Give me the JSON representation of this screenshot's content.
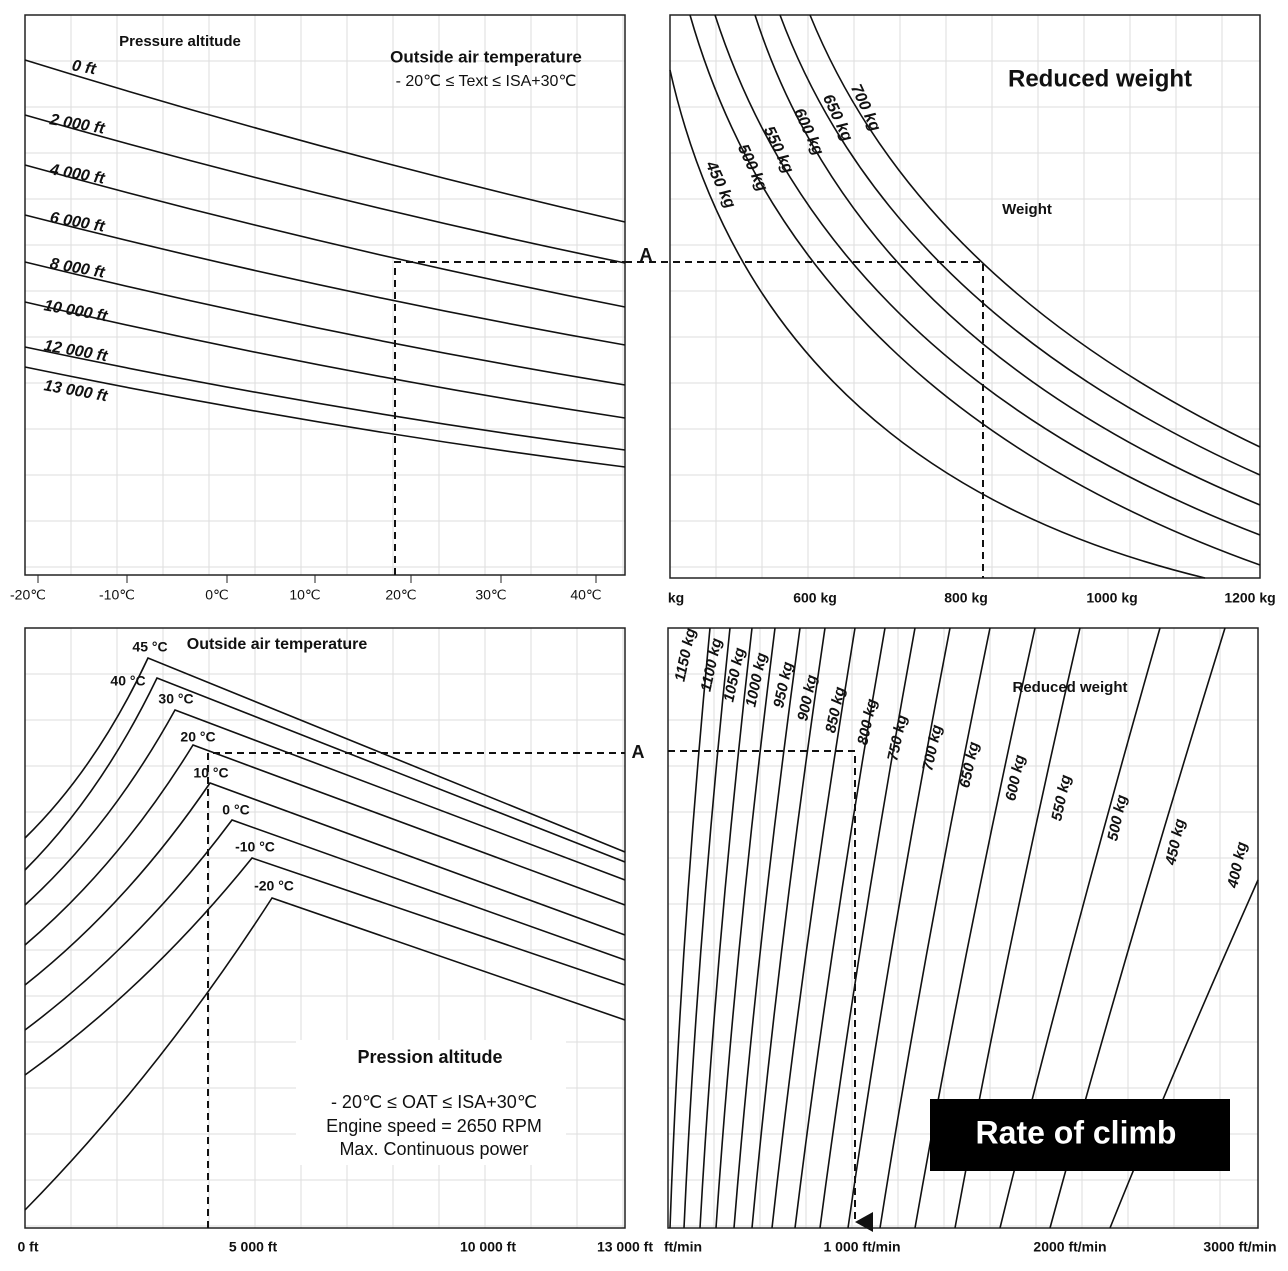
{
  "top_left": {
    "title": "Pressure altitude",
    "note_title": "Outside air temperature",
    "note": "- 20℃  ≤ Text ≤ ISA+30℃",
    "curve_labels": [
      "0 ft",
      "2 000 ft",
      "4 000 ft",
      "6 000 ft",
      "8 000 ft",
      "10 000 ft",
      "12 000 ft",
      "13 000 ft"
    ],
    "x_labels": [
      "-20℃",
      "-10℃",
      "0℃",
      "10℃",
      "20℃",
      "30℃",
      "40℃"
    ],
    "marker": "A"
  },
  "top_right": {
    "title": "Reduced weight",
    "subtitle": "Weight",
    "curve_labels": [
      "450 kg",
      "500 kg",
      "550 kg",
      "600 kg",
      "650 kg",
      "700 kg"
    ],
    "x_labels": [
      "kg",
      "600 kg",
      "800 kg",
      "1000 kg",
      "1200 kg"
    ]
  },
  "bottom_left": {
    "title": "Outside air temperature",
    "curve_labels": [
      "45 °C",
      "40 °C",
      "30 °C",
      "20 °C",
      "10 °C",
      "0 °C",
      "-10 °C",
      "-20 °C"
    ],
    "x_labels": [
      "0 ft",
      "5 000 ft",
      "10 000 ft",
      "13 000 ft"
    ],
    "marker": "A",
    "box_title": "Pression altitude",
    "notes": [
      "- 20℃  ≤ OAT ≤ ISA+30℃",
      "Engine speed = 2650 RPM",
      "Max. Continuous power"
    ]
  },
  "bottom_right": {
    "title": "Reduced weight",
    "curve_labels": [
      "1150 kg",
      "1100 kg",
      "1050 kg",
      "1000 kg",
      "950 kg",
      "900 kg",
      "850 kg",
      "800 kg",
      "750 kg",
      "700 kg",
      "650 kg",
      "600 kg",
      "550 kg",
      "500 kg",
      "450 kg",
      "400 kg"
    ],
    "x_labels": [
      "ft/min",
      "1 000 ft/min",
      "2000 ft/min",
      "3000 ft/min"
    ],
    "banner": "Rate of climb"
  }
}
